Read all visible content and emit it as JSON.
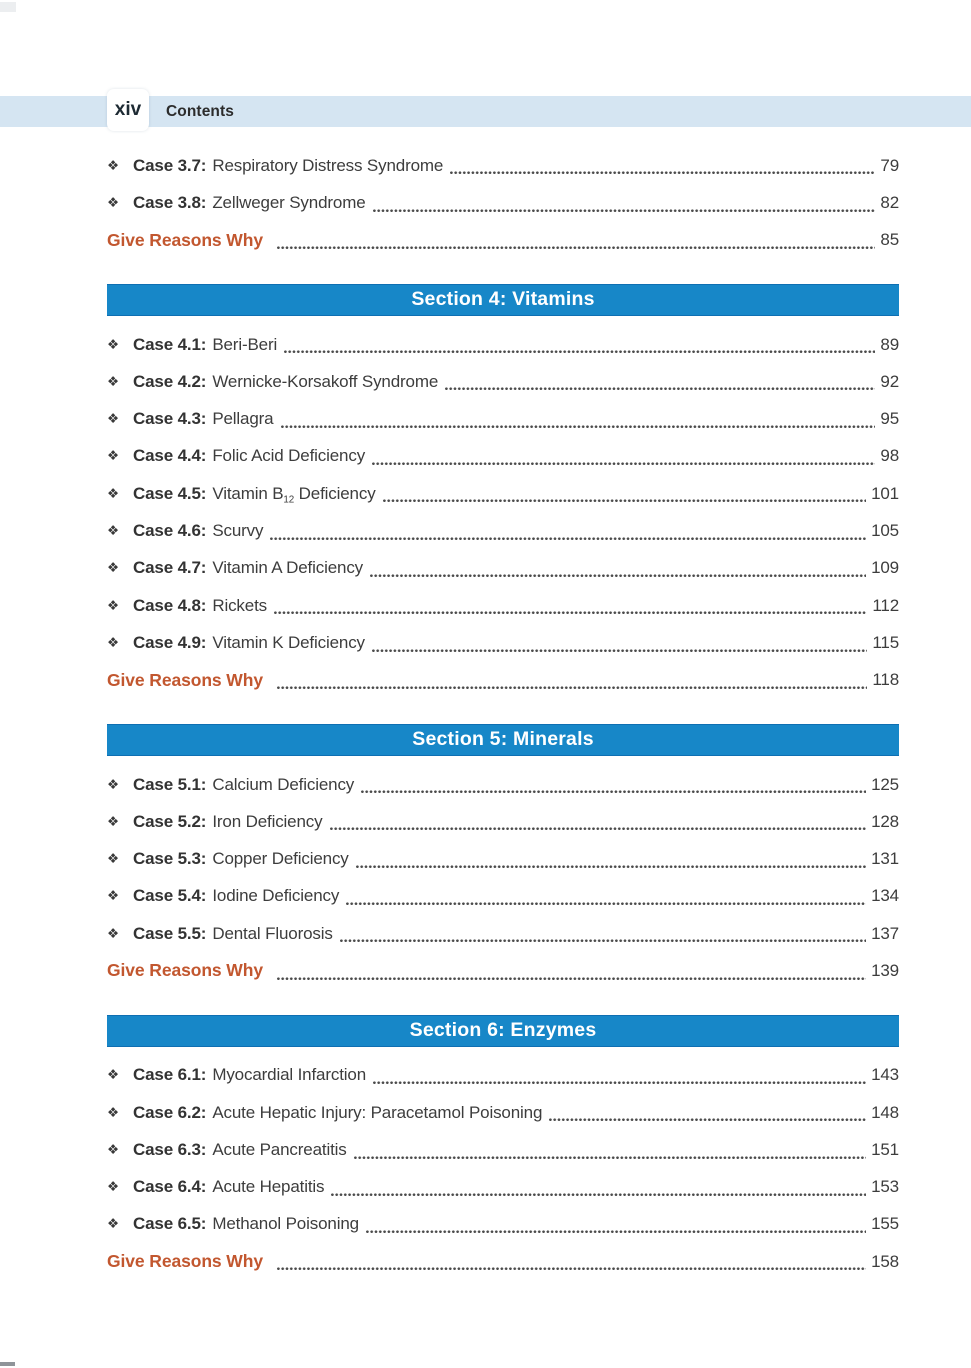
{
  "page": {
    "page_number": "xiv",
    "header_title": "Contents"
  },
  "colors": {
    "header_band": "#d5e5f2",
    "section_bar": "#1787c8",
    "section_bar_edge": "#0f6fb2",
    "accent_orange": "#c2572f",
    "body_text": "#3d3d3d"
  },
  "bullet_icon": "❖",
  "sections": [
    {
      "header": null,
      "entries": [
        {
          "label": "Case 3.7:",
          "title": "Respiratory Distress Syndrome",
          "page": "79"
        },
        {
          "label": "Case 3.8:",
          "title": "Zellweger Syndrome",
          "page": "82"
        }
      ],
      "footer": {
        "label": "Give Reasons Why",
        "page": "85"
      }
    },
    {
      "header": "Section 4: Vitamins",
      "entries": [
        {
          "label": "Case 4.1:",
          "title": "Beri-Beri",
          "page": "89"
        },
        {
          "label": "Case 4.2:",
          "title": "Wernicke-Korsakoff Syndrome",
          "page": "92"
        },
        {
          "label": "Case 4.3:",
          "title": "Pellagra",
          "page": "95"
        },
        {
          "label": "Case 4.4:",
          "title": "Folic Acid Deficiency",
          "page": "98"
        },
        {
          "label": "Case 4.5:",
          "title_parts": [
            {
              "text": "Vitamin B"
            },
            {
              "sub": "12"
            },
            {
              "text": " Deficiency"
            }
          ],
          "page": "101"
        },
        {
          "label": "Case 4.6:",
          "title": "Scurvy",
          "page": "105"
        },
        {
          "label": "Case 4.7:",
          "title": "Vitamin A Deficiency",
          "page": "109"
        },
        {
          "label": "Case 4.8:",
          "title": "Rickets",
          "page": "112"
        },
        {
          "label": "Case 4.9:",
          "title": "Vitamin K Deficiency",
          "page": "115"
        }
      ],
      "footer": {
        "label": "Give Reasons Why",
        "page": "118"
      }
    },
    {
      "header": "Section 5: Minerals",
      "entries": [
        {
          "label": "Case 5.1:",
          "title": "Calcium Deficiency",
          "page": "125"
        },
        {
          "label": "Case 5.2:",
          "title": "Iron Deficiency",
          "page": "128"
        },
        {
          "label": "Case 5.3:",
          "title": "Copper Deficiency",
          "page": "131"
        },
        {
          "label": "Case 5.4:",
          "title": "Iodine Deficiency",
          "page": "134"
        },
        {
          "label": "Case 5.5:",
          "title": "Dental Fluorosis",
          "page": "137"
        }
      ],
      "footer": {
        "label": "Give Reasons Why",
        "page": "139"
      }
    },
    {
      "header": "Section 6: Enzymes",
      "entries": [
        {
          "label": "Case 6.1:",
          "title": "Myocardial Infarction",
          "page": "143"
        },
        {
          "label": "Case 6.2:",
          "title": "Acute Hepatic Injury: Paracetamol Poisoning",
          "page": "148"
        },
        {
          "label": "Case 6.3:",
          "title": "Acute Pancreatitis",
          "page": "151"
        },
        {
          "label": "Case 6.4:",
          "title": "Acute Hepatitis",
          "page": "153"
        },
        {
          "label": "Case 6.5:",
          "title": "Methanol Poisoning",
          "page": "155"
        }
      ],
      "footer": {
        "label": "Give Reasons Why",
        "page": "158"
      }
    }
  ]
}
